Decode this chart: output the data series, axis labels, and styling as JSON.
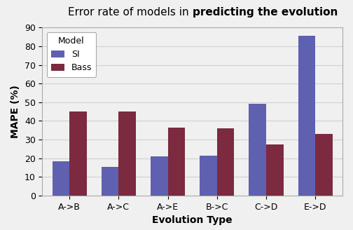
{
  "title_normal": "Error rate of models in ",
  "title_bold": "predicting the evolution",
  "xlabel": "Evolution Type",
  "ylabel": "MAPE (%)",
  "categories": [
    "A->B",
    "A->C",
    "A->E",
    "B->C",
    "C->D",
    "E->D"
  ],
  "si_values": [
    18.5,
    15.5,
    21.0,
    21.5,
    49.0,
    85.5
  ],
  "bass_values": [
    45.0,
    45.0,
    36.5,
    36.0,
    27.5,
    33.0
  ],
  "si_color": "#6060b0",
  "bass_color": "#7b2a40",
  "ylim": [
    0,
    90
  ],
  "yticks": [
    0,
    10,
    20,
    30,
    40,
    50,
    60,
    70,
    80,
    90
  ],
  "legend_title": "Model",
  "legend_labels": [
    "SI",
    "Bass"
  ],
  "bar_width": 0.35,
  "background_color": "#f0f0f0",
  "grid_color": "#d0d0d0",
  "title_fontsize": 11,
  "axis_label_fontsize": 10,
  "tick_fontsize": 9,
  "legend_fontsize": 9
}
